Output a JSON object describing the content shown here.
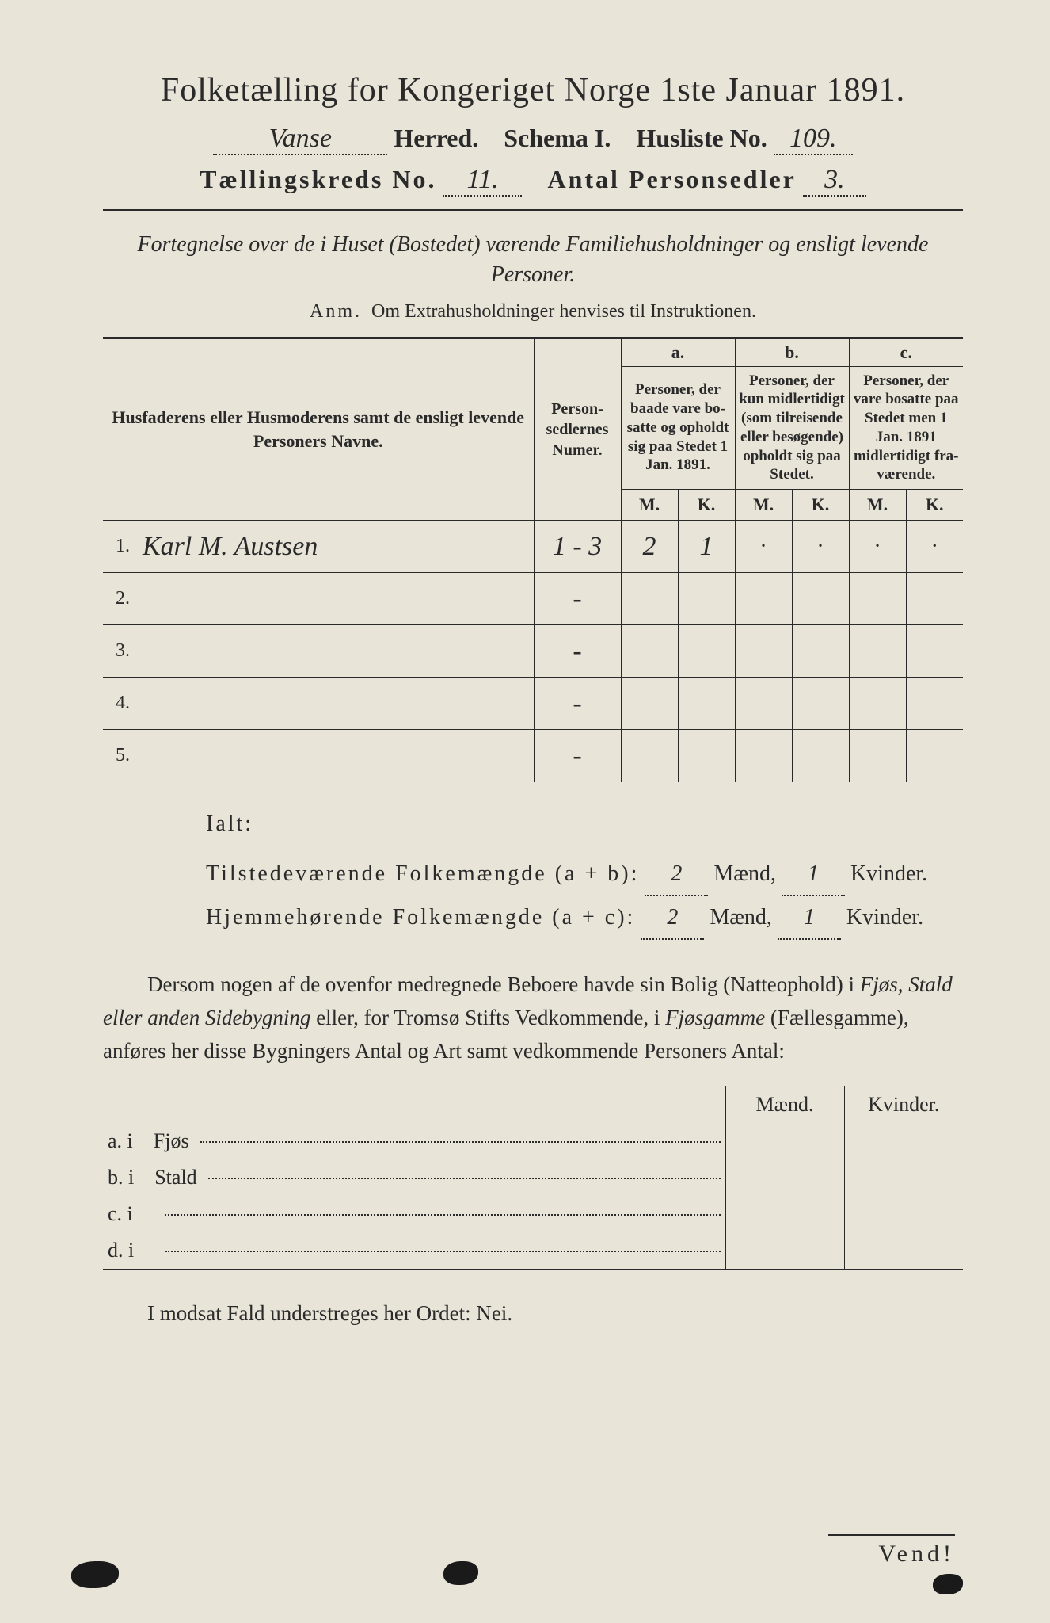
{
  "title": "Folketælling for Kongeriget Norge 1ste Januar 1891.",
  "header": {
    "herred_value": "Vanse",
    "herred_label": "Herred.",
    "schema_label": "Schema I.",
    "husliste_label": "Husliste No.",
    "husliste_value": "109.",
    "kreds_label": "Tællingskreds No.",
    "kreds_value": "11.",
    "antal_label": "Antal Personsedler",
    "antal_value": "3."
  },
  "intro": "Fortegnelse over de i Huset (Bostedet) værende Familiehusholdninger og ensligt levende Personer.",
  "anm_label": "Anm.",
  "anm_text": "Om Extrahusholdninger henvises til Instruktionen.",
  "table": {
    "col_names": "Husfaderens eller Husmode­rens samt de ensligt levende Personers Navne.",
    "col_num": "Person­sedler­nes Numer.",
    "a_label": "a.",
    "a_desc": "Personer, der baade vare bo­satte og opholdt sig paa Stedet 1 Jan. 1891.",
    "b_label": "b.",
    "b_desc": "Personer, der kun midler­tidigt (som tilreisende eller besøgende) opholdt sig paa Stedet.",
    "c_label": "c.",
    "c_desc": "Personer, der vare bosatte paa Stedet men 1 Jan. 1891 midler­tidigt fra­værende.",
    "m": "M.",
    "k": "K.",
    "rows": [
      {
        "n": "1.",
        "name": "Karl M. Austsen",
        "num": "1 - 3",
        "am": "2",
        "ak": "1",
        "bm": "·",
        "bk": "·",
        "cm": "·",
        "ck": "·"
      },
      {
        "n": "2.",
        "name": "",
        "num": "-",
        "am": "",
        "ak": "",
        "bm": "",
        "bk": "",
        "cm": "",
        "ck": ""
      },
      {
        "n": "3.",
        "name": "",
        "num": "-",
        "am": "",
        "ak": "",
        "bm": "",
        "bk": "",
        "cm": "",
        "ck": ""
      },
      {
        "n": "4.",
        "name": "",
        "num": "-",
        "am": "",
        "ak": "",
        "bm": "",
        "bk": "",
        "cm": "",
        "ck": ""
      },
      {
        "n": "5.",
        "name": "",
        "num": "-",
        "am": "",
        "ak": "",
        "bm": "",
        "bk": "",
        "cm": "",
        "ck": ""
      }
    ]
  },
  "totals": {
    "ialt": "Ialt:",
    "line1_label": "Tilstedeværende Folkemængde (a + b):",
    "line1_m": "2",
    "line1_k": "1",
    "line2_label": "Hjemmehørende Folkemængde (a + c):",
    "line2_m": "2",
    "line2_k": "1",
    "maend": "Mænd,",
    "kvinder": "Kvinder."
  },
  "para": {
    "t1": "Dersom nogen af de ovenfor medregnede Beboere havde sin Bolig (Natte­ophold) i ",
    "i1": "Fjøs, Stald eller anden Sidebygning",
    "t2": " eller, for Tromsø Stifts Ved­kommende, i ",
    "i2": "Fjøsgamme",
    "t3": " (Fællesgamme), anføres her disse Bygningers Antal og Art samt vedkommende Personers Antal:"
  },
  "side": {
    "maend": "Mænd.",
    "kvinder": "Kvinder.",
    "rows": [
      {
        "l": "a.  i",
        "t": "Fjøs"
      },
      {
        "l": "b.  i",
        "t": "Stald"
      },
      {
        "l": "c.  i",
        "t": ""
      },
      {
        "l": "d.  i",
        "t": ""
      }
    ]
  },
  "nei": "I modsat Fald understreges her Ordet: Nei.",
  "vend": "Vend!"
}
